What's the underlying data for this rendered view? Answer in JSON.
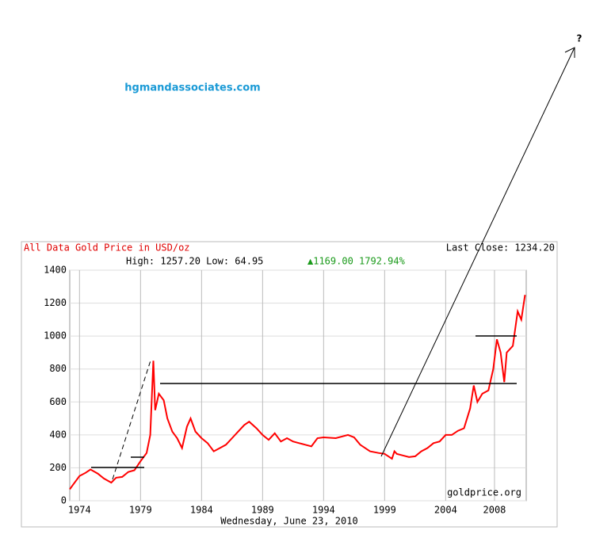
{
  "watermark": "hgmandassociates.com",
  "question": "?",
  "chart_data": {
    "type": "line",
    "title": "All Data Gold Price in USD/oz",
    "last_close": "Last Close: 1234.20",
    "high_low": "High: 1257.20 Low: 64.95",
    "change": "▲1169.00 1792.94%",
    "source": "goldprice.org",
    "date": "Wednesday, June 23, 2010",
    "xlim": [
      1973.2,
      2010.6
    ],
    "xticks": [
      1974,
      1979,
      1984,
      1989,
      1994,
      1999,
      2004,
      2008
    ],
    "ylim": [
      0,
      1400
    ],
    "yticks": [
      0,
      200,
      400,
      600,
      800,
      1000,
      1200,
      1400
    ],
    "grid": true,
    "series": [
      {
        "color": "#ff0000",
        "x": [
          1973.2,
          1973.5,
          1974,
          1974.5,
          1974.9,
          1975.5,
          1976,
          1976.6,
          1977,
          1977.5,
          1978,
          1978.5,
          1979,
          1979.5,
          1979.8,
          1980.05,
          1980.2,
          1980.5,
          1980.9,
          1981.2,
          1981.6,
          1982,
          1982.4,
          1982.8,
          1983.1,
          1983.5,
          1984,
          1984.5,
          1985,
          1985.5,
          1986,
          1986.5,
          1987,
          1987.5,
          1987.9,
          1988.5,
          1989,
          1989.5,
          1990,
          1990.5,
          1991,
          1991.5,
          1992,
          1992.5,
          1993,
          1993.5,
          1994,
          1995,
          1996,
          1996.5,
          1997,
          1997.8,
          1998.5,
          1999,
          1999.6,
          1999.8,
          2000,
          2001,
          2001.5,
          2002,
          2002.5,
          2003,
          2003.5,
          2004,
          2004.5,
          2005,
          2005.5,
          2006,
          2006.3,
          2006.6,
          2007,
          2007.5,
          2007.9,
          2008.2,
          2008.5,
          2008.8,
          2009,
          2009.5,
          2009.9,
          2010.2,
          2010.5
        ],
        "values": [
          70,
          100,
          150,
          170,
          190,
          165,
          135,
          110,
          140,
          145,
          175,
          185,
          240,
          290,
          400,
          850,
          550,
          650,
          610,
          500,
          420,
          380,
          320,
          450,
          500,
          420,
          380,
          350,
          300,
          320,
          340,
          380,
          420,
          460,
          480,
          440,
          400,
          370,
          410,
          360,
          380,
          360,
          350,
          340,
          330,
          380,
          385,
          380,
          400,
          385,
          340,
          300,
          290,
          285,
          255,
          300,
          285,
          265,
          270,
          300,
          320,
          350,
          360,
          400,
          400,
          425,
          440,
          560,
          700,
          600,
          650,
          670,
          800,
          980,
          900,
          720,
          900,
          940,
          1150,
          1100,
          1250
        ]
      }
    ]
  }
}
